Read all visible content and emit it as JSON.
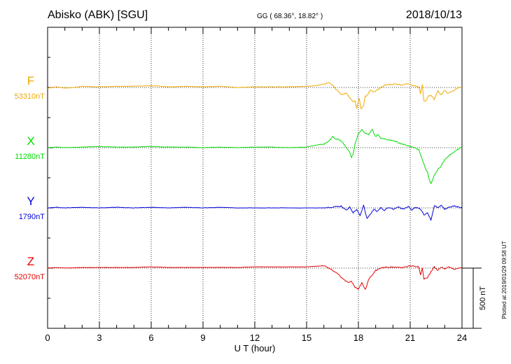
{
  "header": {
    "station": "Abisko (ABK)  [SGU]",
    "coords": "GG ( 68.36°,  18.82° )",
    "date": "2018/10/13"
  },
  "plot_note": "Plotted at 2019/01/29 09:58 UT",
  "chart_data": {
    "type": "line",
    "xlabel": "U T (hour)",
    "xlim": [
      0,
      24
    ],
    "xticks": [
      "0",
      "3",
      "6",
      "9",
      "12",
      "15",
      "18",
      "21",
      "24"
    ],
    "grid": true,
    "scale_bar": {
      "label": "500 nT",
      "value_nT": 500
    },
    "series": [
      {
        "name": "F",
        "baseline_label": "53310nT",
        "baseline_nT": 53310,
        "color": "#f0a800",
        "points": [
          [
            0,
            5
          ],
          [
            0.5,
            -5
          ],
          [
            1,
            5
          ],
          [
            1.5,
            0
          ],
          [
            2,
            -10
          ],
          [
            3,
            -5
          ],
          [
            4,
            -10
          ],
          [
            5,
            -10
          ],
          [
            6,
            -15
          ],
          [
            7,
            -5
          ],
          [
            8,
            -10
          ],
          [
            9,
            -5
          ],
          [
            10,
            -10
          ],
          [
            11,
            0
          ],
          [
            12,
            -5
          ],
          [
            13,
            -5
          ],
          [
            14,
            -5
          ],
          [
            15,
            -10
          ],
          [
            15.5,
            -15
          ],
          [
            16,
            -30
          ],
          [
            16.3,
            -40
          ],
          [
            16.5,
            -20
          ],
          [
            16.8,
            30
          ],
          [
            17,
            60
          ],
          [
            17.3,
            50
          ],
          [
            17.5,
            90
          ],
          [
            17.7,
            120
          ],
          [
            17.8,
            110
          ],
          [
            17.9,
            170
          ],
          [
            18.05,
            90
          ],
          [
            18.15,
            180
          ],
          [
            18.3,
            150
          ],
          [
            18.4,
            70
          ],
          [
            18.5,
            70
          ],
          [
            18.7,
            20
          ],
          [
            18.9,
            40
          ],
          [
            19.1,
            20
          ],
          [
            19.3,
            0
          ],
          [
            19.6,
            -25
          ],
          [
            19.9,
            -25
          ],
          [
            20.2,
            -30
          ],
          [
            20.5,
            -20
          ],
          [
            20.8,
            -30
          ],
          [
            21.1,
            -20
          ],
          [
            21.3,
            -10
          ],
          [
            21.5,
            -5
          ],
          [
            21.6,
            50
          ],
          [
            21.7,
            -20
          ],
          [
            21.8,
            110
          ],
          [
            21.9,
            110
          ],
          [
            22.0,
            80
          ],
          [
            22.2,
            60
          ],
          [
            22.4,
            100
          ],
          [
            22.6,
            30
          ],
          [
            22.8,
            60
          ],
          [
            23.0,
            20
          ],
          [
            23.2,
            50
          ],
          [
            23.4,
            30
          ],
          [
            23.6,
            20
          ],
          [
            23.8,
            0
          ],
          [
            24,
            0
          ]
        ]
      },
      {
        "name": "X",
        "baseline_label": "11280nT",
        "baseline_nT": 11280,
        "color": "#00dc00",
        "points": [
          [
            0,
            0
          ],
          [
            0.5,
            -5
          ],
          [
            1,
            0
          ],
          [
            2,
            -5
          ],
          [
            3,
            -10
          ],
          [
            4,
            -5
          ],
          [
            5,
            -5
          ],
          [
            6,
            -10
          ],
          [
            7,
            -5
          ],
          [
            8,
            -5
          ],
          [
            9,
            0
          ],
          [
            10,
            -5
          ],
          [
            11,
            0
          ],
          [
            12,
            -5
          ],
          [
            13,
            -5
          ],
          [
            14,
            0
          ],
          [
            15,
            -5
          ],
          [
            15.5,
            -20
          ],
          [
            16,
            -30
          ],
          [
            16.3,
            -55
          ],
          [
            16.5,
            -90
          ],
          [
            16.7,
            -75
          ],
          [
            16.9,
            -65
          ],
          [
            17.1,
            -40
          ],
          [
            17.3,
            0
          ],
          [
            17.5,
            40
          ],
          [
            17.6,
            80
          ],
          [
            17.7,
            50
          ],
          [
            17.8,
            -30
          ],
          [
            18.0,
            -120
          ],
          [
            18.1,
            -130
          ],
          [
            18.2,
            -150
          ],
          [
            18.4,
            -120
          ],
          [
            18.6,
            -110
          ],
          [
            18.8,
            -150
          ],
          [
            19.0,
            -90
          ],
          [
            19.1,
            -110
          ],
          [
            19.3,
            -80
          ],
          [
            19.6,
            -70
          ],
          [
            19.9,
            -60
          ],
          [
            20.2,
            -50
          ],
          [
            20.5,
            -30
          ],
          [
            20.8,
            -20
          ],
          [
            21.1,
            -5
          ],
          [
            21.3,
            0
          ],
          [
            21.5,
            20
          ],
          [
            21.7,
            100
          ],
          [
            21.9,
            180
          ],
          [
            22.0,
            200
          ],
          [
            22.1,
            260
          ],
          [
            22.2,
            300
          ],
          [
            22.3,
            260
          ],
          [
            22.4,
            230
          ],
          [
            22.6,
            180
          ],
          [
            22.8,
            150
          ],
          [
            23.0,
            100
          ],
          [
            23.3,
            60
          ],
          [
            23.6,
            30
          ],
          [
            23.9,
            0
          ],
          [
            24,
            0
          ]
        ]
      },
      {
        "name": "Y",
        "baseline_label": "1790nT",
        "baseline_nT": 1790,
        "color": "#0000dc",
        "points": [
          [
            0,
            0
          ],
          [
            0.5,
            -5
          ],
          [
            1,
            0
          ],
          [
            2,
            -5
          ],
          [
            3,
            0
          ],
          [
            4,
            -5
          ],
          [
            5,
            0
          ],
          [
            6,
            -5
          ],
          [
            7,
            0
          ],
          [
            8,
            -5
          ],
          [
            9,
            0
          ],
          [
            10,
            -5
          ],
          [
            11,
            0
          ],
          [
            12,
            0
          ],
          [
            13,
            0
          ],
          [
            14,
            0
          ],
          [
            15,
            0
          ],
          [
            16,
            0
          ],
          [
            16.5,
            -5
          ],
          [
            17,
            -15
          ],
          [
            17.3,
            20
          ],
          [
            17.5,
            -10
          ],
          [
            17.7,
            40
          ],
          [
            17.9,
            10
          ],
          [
            18.1,
            60
          ],
          [
            18.3,
            -20
          ],
          [
            18.5,
            90
          ],
          [
            18.7,
            50
          ],
          [
            18.9,
            10
          ],
          [
            19.1,
            30
          ],
          [
            19.3,
            0
          ],
          [
            19.5,
            20
          ],
          [
            19.7,
            -5
          ],
          [
            20,
            10
          ],
          [
            20.3,
            -5
          ],
          [
            20.6,
            10
          ],
          [
            20.9,
            -10
          ],
          [
            21.1,
            20
          ],
          [
            21.3,
            -5
          ],
          [
            21.6,
            10
          ],
          [
            21.8,
            60
          ],
          [
            22.0,
            40
          ],
          [
            22.2,
            100
          ],
          [
            22.4,
            -20
          ],
          [
            22.6,
            0
          ],
          [
            22.8,
            -20
          ],
          [
            23.0,
            10
          ],
          [
            23.3,
            -10
          ],
          [
            23.6,
            -15
          ],
          [
            24,
            0
          ]
        ]
      },
      {
        "name": "Z",
        "baseline_label": "52070nT",
        "baseline_nT": 52070,
        "color": "#e60000",
        "points": [
          [
            0,
            0
          ],
          [
            0.5,
            -5
          ],
          [
            1,
            0
          ],
          [
            2,
            -5
          ],
          [
            3,
            -5
          ],
          [
            4,
            -5
          ],
          [
            5,
            -5
          ],
          [
            6,
            -10
          ],
          [
            7,
            -5
          ],
          [
            8,
            -5
          ],
          [
            9,
            -5
          ],
          [
            10,
            -5
          ],
          [
            11,
            -5
          ],
          [
            12,
            -10
          ],
          [
            13,
            -10
          ],
          [
            14,
            -10
          ],
          [
            15,
            -10
          ],
          [
            15.5,
            -15
          ],
          [
            16,
            -20
          ],
          [
            16.3,
            0
          ],
          [
            16.6,
            30
          ],
          [
            16.9,
            60
          ],
          [
            17.1,
            90
          ],
          [
            17.4,
            120
          ],
          [
            17.6,
            110
          ],
          [
            17.8,
            160
          ],
          [
            18.0,
            170
          ],
          [
            18.2,
            120
          ],
          [
            18.4,
            180
          ],
          [
            18.6,
            90
          ],
          [
            18.8,
            60
          ],
          [
            19.0,
            20
          ],
          [
            19.3,
            0
          ],
          [
            19.6,
            -10
          ],
          [
            19.9,
            -10
          ],
          [
            20.2,
            -5
          ],
          [
            20.5,
            -5
          ],
          [
            20.8,
            -10
          ],
          [
            21.1,
            -20
          ],
          [
            21.3,
            -15
          ],
          [
            21.5,
            -10
          ],
          [
            21.6,
            60
          ],
          [
            21.7,
            0
          ],
          [
            21.8,
            90
          ],
          [
            22.0,
            80
          ],
          [
            22.2,
            30
          ],
          [
            22.4,
            -10
          ],
          [
            22.6,
            20
          ],
          [
            22.8,
            -10
          ],
          [
            23.0,
            10
          ],
          [
            23.2,
            -10
          ],
          [
            23.5,
            10
          ],
          [
            23.8,
            0
          ],
          [
            24,
            0
          ]
        ]
      }
    ]
  }
}
